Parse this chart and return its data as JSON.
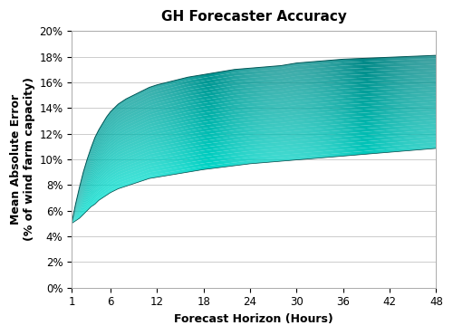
{
  "title": "GH Forecaster Accuracy",
  "xlabel": "Forecast Horizon (Hours)",
  "ylabel": "Mean Absolute Error\n(% of wind farm capacity)",
  "x": [
    1,
    1.5,
    2,
    2.5,
    3,
    3.5,
    4,
    4.5,
    5,
    5.5,
    6,
    7,
    8,
    9,
    10,
    11,
    12,
    14,
    16,
    18,
    20,
    22,
    24,
    26,
    28,
    30,
    32,
    34,
    36,
    38,
    40,
    42,
    44,
    46,
    48
  ],
  "upper": [
    5.0,
    6.5,
    7.8,
    9.0,
    10.0,
    10.9,
    11.7,
    12.3,
    12.8,
    13.3,
    13.7,
    14.3,
    14.7,
    15.0,
    15.3,
    15.6,
    15.8,
    16.1,
    16.4,
    16.6,
    16.8,
    17.0,
    17.1,
    17.2,
    17.3,
    17.5,
    17.6,
    17.7,
    17.8,
    17.85,
    17.9,
    17.95,
    18.0,
    18.05,
    18.1
  ],
  "lower": [
    5.0,
    5.2,
    5.4,
    5.7,
    6.0,
    6.3,
    6.5,
    6.8,
    7.0,
    7.2,
    7.4,
    7.7,
    7.9,
    8.1,
    8.3,
    8.5,
    8.6,
    8.8,
    9.0,
    9.2,
    9.35,
    9.5,
    9.65,
    9.75,
    9.85,
    9.95,
    10.05,
    10.15,
    10.25,
    10.35,
    10.45,
    10.55,
    10.65,
    10.75,
    10.85
  ],
  "xticks": [
    1,
    6,
    12,
    18,
    24,
    30,
    36,
    42,
    48
  ],
  "yticks": [
    0,
    2,
    4,
    6,
    8,
    10,
    12,
    14,
    16,
    18,
    20
  ],
  "xlim": [
    1,
    48
  ],
  "ylim": [
    0,
    20
  ],
  "color_bright": "#00e5e5",
  "color_mid": "#009999",
  "color_dark": "#006b6b",
  "bg_color": "#ffffff",
  "title_fontsize": 11,
  "label_fontsize": 9,
  "tick_fontsize": 8.5,
  "grid_color": "#cccccc",
  "figsize": [
    5.0,
    3.7
  ],
  "dpi": 100
}
